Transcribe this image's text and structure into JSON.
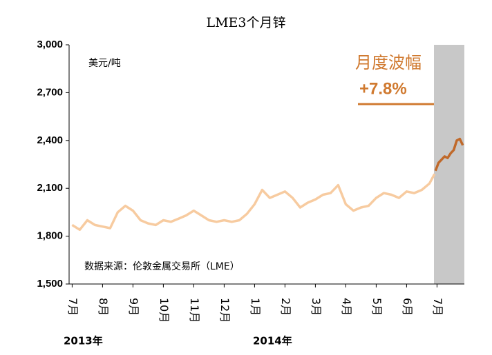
{
  "chart_data": {
    "type": "line",
    "title": "LME3个月锌",
    "unit_label": "美元/吨",
    "annotation_title": "月度波幅",
    "annotation_value": "+7.8%",
    "source": "数据来源：伦敦金属交易所（LME）",
    "years": [
      "2013年",
      "2014年"
    ],
    "ylim": [
      1500,
      3000
    ],
    "yticks": [
      {
        "value": 1500,
        "label": "1,500"
      },
      {
        "value": 1800,
        "label": "1,800"
      },
      {
        "value": 2100,
        "label": "2,100"
      },
      {
        "value": 2400,
        "label": "2,400"
      },
      {
        "value": 2700,
        "label": "2,700"
      },
      {
        "value": 3000,
        "label": "3,000"
      }
    ],
    "xlim": [
      -0.1,
      12.9
    ],
    "xticks": [
      {
        "value": 0,
        "label": "7月"
      },
      {
        "value": 1,
        "label": "8月"
      },
      {
        "value": 2,
        "label": "9月"
      },
      {
        "value": 3,
        "label": "10月"
      },
      {
        "value": 4,
        "label": "11月"
      },
      {
        "value": 5,
        "label": "12月"
      },
      {
        "value": 6,
        "label": "1月"
      },
      {
        "value": 7,
        "label": "2月"
      },
      {
        "value": 8,
        "label": "3月"
      },
      {
        "value": 9,
        "label": "4月"
      },
      {
        "value": 10,
        "label": "5月"
      },
      {
        "value": 11,
        "label": "6月"
      },
      {
        "value": 12,
        "label": "7月"
      }
    ],
    "highlight_range": [
      11.9,
      12.9
    ],
    "highlight_color": "#c8c8c8",
    "series": [
      {
        "color": "#f7cba0",
        "x": [
          0,
          0.25,
          0.5,
          0.75,
          1,
          1.25,
          1.5,
          1.75,
          2,
          2.25,
          2.5,
          2.75,
          3,
          3.25,
          3.5,
          3.75,
          4,
          4.25,
          4.5,
          4.75,
          5,
          5.25,
          5.5,
          5.75,
          6,
          6.25,
          6.5,
          6.75,
          7,
          7.25,
          7.5,
          7.75,
          8,
          8.25,
          8.5,
          8.75,
          9,
          9.25,
          9.5,
          9.75,
          10,
          10.25,
          10.5,
          10.75,
          11,
          11.25,
          11.5,
          11.75,
          11.92
        ],
        "values": [
          1870,
          1840,
          1900,
          1870,
          1860,
          1850,
          1950,
          1990,
          1960,
          1900,
          1880,
          1870,
          1900,
          1890,
          1910,
          1930,
          1960,
          1930,
          1900,
          1890,
          1900,
          1890,
          1900,
          1940,
          2000,
          2090,
          2040,
          2060,
          2080,
          2040,
          1980,
          2010,
          2030,
          2060,
          2070,
          2120,
          2000,
          1960,
          1980,
          1990,
          2040,
          2070,
          2060,
          2040,
          2080,
          2070,
          2090,
          2130,
          2190
        ]
      },
      {
        "color": "#c0692a",
        "x": [
          11.95,
          12.05,
          12.15,
          12.25,
          12.35,
          12.45,
          12.55,
          12.65,
          12.75,
          12.85
        ],
        "values": [
          2210,
          2260,
          2280,
          2300,
          2290,
          2320,
          2340,
          2400,
          2410,
          2370
        ]
      }
    ]
  }
}
